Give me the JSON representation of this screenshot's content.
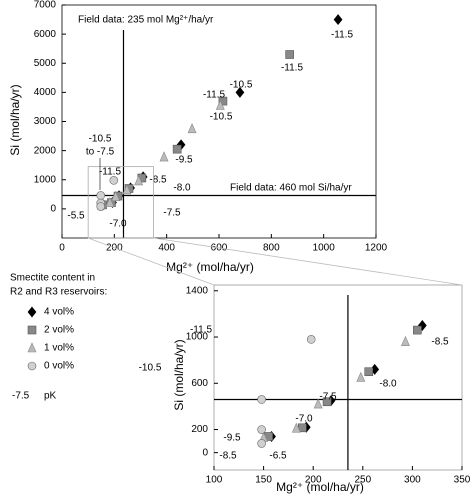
{
  "chart_data": [
    {
      "type": "scatter",
      "xlabel": "Mg²⁺ (mol/ha/yr)",
      "ylabel": "Si (mol/ha/yr)",
      "xlim": [
        0,
        1200
      ],
      "ylim": [
        -1000,
        7000
      ],
      "xticks": [
        0,
        200,
        400,
        600,
        800,
        1000,
        1200
      ],
      "yticks": [
        0,
        1000,
        2000,
        3000,
        4000,
        5000,
        6000,
        7000
      ],
      "field_x": 235,
      "field_y": 460,
      "field_x_label": "Field data: 235 mol Mg²⁺/ha/yr",
      "field_y_label": "Field data: 460 mol Si/ha/yr",
      "series": [
        {
          "name": "4 vol%",
          "color": "#000000",
          "marker": "diamond",
          "x": [
            1055,
            680,
            455,
            310,
            262,
            218,
            193,
            158
          ],
          "values": [
            6500,
            4000,
            2200,
            1100,
            720,
            450,
            220,
            140
          ]
        },
        {
          "name": "2 vol%",
          "color": "#888888",
          "marker": "square",
          "x": [
            870,
            615,
            440,
            305,
            256,
            214,
            189,
            155
          ],
          "values": [
            5300,
            3700,
            2050,
            1060,
            700,
            440,
            215,
            140
          ]
        },
        {
          "name": "1 vol%",
          "color": "#bbbbbb",
          "marker": "triangle",
          "x": [
            605,
            497,
            390,
            293,
            248,
            205,
            183,
            150
          ],
          "values": [
            3550,
            2750,
            1780,
            960,
            650,
            420,
            210,
            130
          ]
        },
        {
          "name": "0 vol%",
          "color": "#d0d0d0",
          "marker": "circle",
          "x": [
            198,
            148,
            148,
            148
          ],
          "values": [
            980,
            460,
            200,
            80
          ]
        }
      ],
      "annotations": [
        "-11.5",
        "-11.5",
        "-10.5",
        "-11.5",
        "-10.5",
        "-9.5",
        "-8.5",
        "-8.0",
        "-7.5",
        "-7.0",
        "-5.5",
        "-11.5",
        "-10.5",
        "to -7.5"
      ],
      "legend_title": [
        "Smectite content in",
        "R2 and R3 reservoirs:"
      ],
      "pk_note": {
        "sample": "-7.5",
        "label": "pK"
      }
    },
    {
      "type": "scatter",
      "xlabel": "Mg²⁺ (mol/ha/yr)",
      "ylabel": "Si (mol/ha/yr)",
      "xlim": [
        100,
        350
      ],
      "ylim": [
        -150,
        1450
      ],
      "xticks": [
        100,
        150,
        200,
        250,
        300,
        350
      ],
      "yticks": [
        0,
        200,
        600,
        1000,
        1400
      ],
      "field_x": 235,
      "field_y": 460,
      "series": [
        {
          "color": "#000000",
          "marker": "diamond",
          "x": [
            310,
            262,
            218,
            193,
            158
          ],
          "values": [
            1100,
            720,
            450,
            220,
            140
          ]
        },
        {
          "color": "#888888",
          "marker": "square",
          "x": [
            305,
            256,
            214,
            189,
            155
          ],
          "values": [
            1060,
            700,
            440,
            215,
            140
          ]
        },
        {
          "color": "#bbbbbb",
          "marker": "triangle",
          "x": [
            293,
            248,
            205,
            183,
            150
          ],
          "values": [
            960,
            650,
            420,
            210,
            130
          ]
        },
        {
          "color": "#d0d0d0",
          "marker": "circle",
          "x": [
            198,
            148,
            148,
            148
          ],
          "values": [
            980,
            460,
            200,
            80
          ]
        }
      ],
      "annotations": [
        "-11.5",
        "-10.5",
        "-9.5",
        "-8.5",
        "-8.0",
        "-7.5",
        "-7.0",
        "-6.5",
        "-8.5"
      ]
    }
  ]
}
